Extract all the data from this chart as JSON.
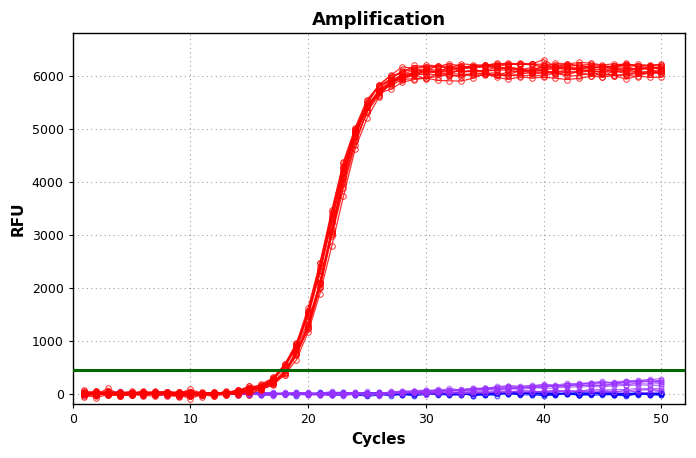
{
  "title": "Amplification",
  "xlabel": "Cycles",
  "ylabel": "RFU",
  "xlim": [
    0,
    52
  ],
  "ylim": [
    -200,
    6800
  ],
  "xticks": [
    0,
    10,
    20,
    30,
    40,
    50
  ],
  "yticks": [
    0,
    1000,
    2000,
    3000,
    4000,
    5000,
    6000
  ],
  "threshold_y": 450,
  "threshold_color": "#006600",
  "red_color": "#FF0000",
  "purple_color": "#9933FF",
  "blue_color": "#0000FF",
  "background_color": "#FFFFFF",
  "n_red_curves": 14,
  "n_purple_curves": 12,
  "n_blue_curves": 8,
  "sigmoid_L": 6100,
  "sigmoid_k": 0.65,
  "sigmoid_x0": 22.0,
  "sigmoid_x0_spread": 0.4,
  "sigmoid_L_spread": 150,
  "noise_amplitude": 30,
  "purple_max": 300,
  "blue_noise": 15,
  "title_fontsize": 13,
  "label_fontsize": 11
}
